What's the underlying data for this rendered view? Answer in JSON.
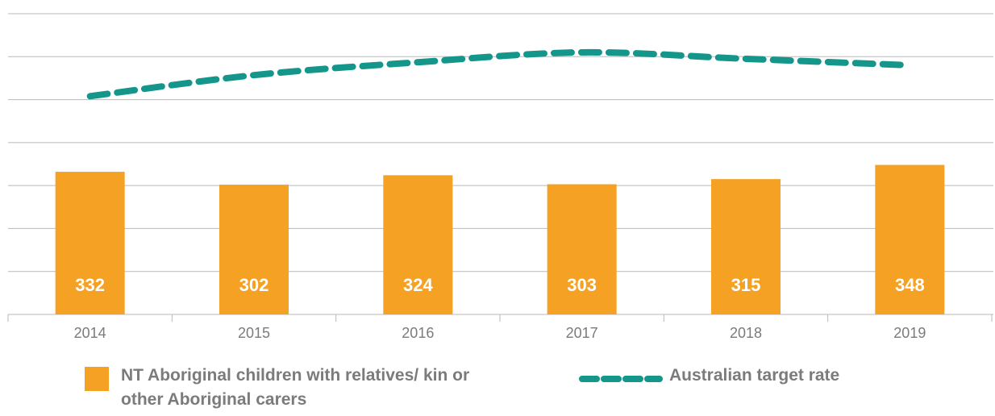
{
  "chart_data": {
    "type": "bar_line",
    "categories": [
      "2014",
      "2015",
      "2016",
      "2017",
      "2018",
      "2019"
    ],
    "series": [
      {
        "name": "NT Aboriginal children with relatives/ kin or other Aboriginal carers",
        "type": "bar",
        "color": "#f5a123",
        "values": [
          332,
          302,
          324,
          303,
          315,
          348
        ]
      },
      {
        "name": "Australian target rate",
        "type": "line",
        "color": "#14968a",
        "values": [
          508,
          557,
          587,
          610,
          595,
          580
        ]
      }
    ],
    "ylim": [
      0,
      700
    ],
    "yticks": [
      0,
      100,
      200,
      300,
      400,
      500,
      600,
      700
    ],
    "grid": true
  }
}
